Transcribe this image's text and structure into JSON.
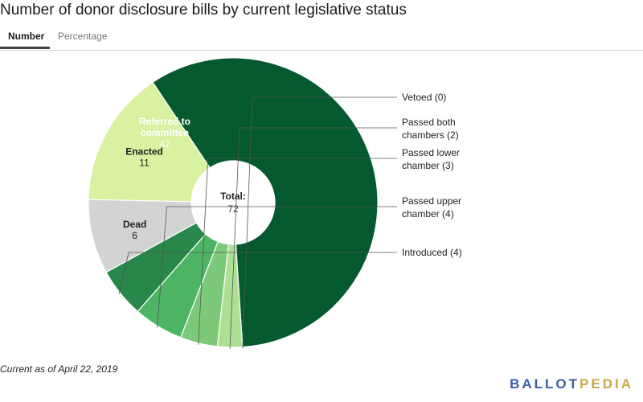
{
  "title": "Number of donor disclosure bills by current legislative status",
  "tabs": [
    {
      "label": "Number",
      "active": true
    },
    {
      "label": "Percentage",
      "active": false
    }
  ],
  "footnote": "Current as of April 22, 2019",
  "logo": {
    "part1": "BALLOT",
    "part2": "PEDIA"
  },
  "chart_data": {
    "type": "pie",
    "center_label": "Total:",
    "total": 72,
    "slices": [
      {
        "name": "Referred to committee",
        "value": 42,
        "color": "#04592f",
        "label_lines": [
          "Referred to",
          "committee"
        ]
      },
      {
        "name": "Vetoed",
        "value": 0,
        "color": "#9fd685",
        "label_lines": [
          "Vetoed (0)"
        ]
      },
      {
        "name": "Passed both chambers",
        "value": 2,
        "color": "#aee094",
        "label_lines": [
          "Passed both",
          "chambers (2)"
        ]
      },
      {
        "name": "Passed lower chamber",
        "value": 3,
        "color": "#7dc97a",
        "label_lines": [
          "Passed lower",
          "chamber (3)"
        ]
      },
      {
        "name": "Passed upper chamber",
        "value": 4,
        "color": "#4cb564",
        "label_lines": [
          "Passed upper",
          "chamber (4)"
        ]
      },
      {
        "name": "Introduced",
        "value": 4,
        "color": "#28884a",
        "label_lines": [
          "Introduced (4)"
        ]
      },
      {
        "name": "Dead",
        "value": 6,
        "color": "#d3d3d3",
        "label_lines": [
          "Dead"
        ]
      },
      {
        "name": "Enacted",
        "value": 11,
        "color": "#d9f1a1",
        "label_lines": [
          "Enacted"
        ]
      }
    ]
  }
}
